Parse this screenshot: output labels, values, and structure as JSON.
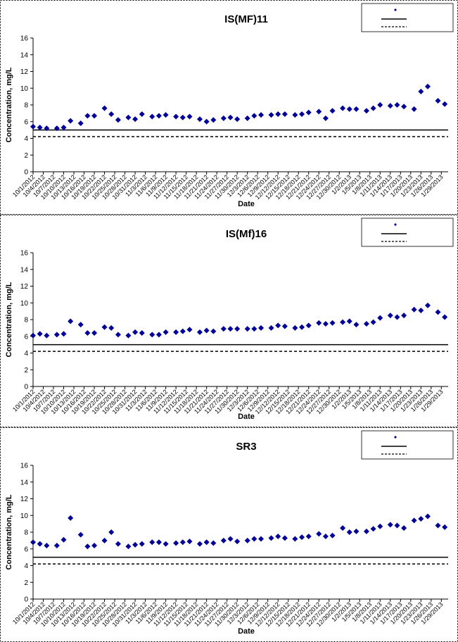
{
  "chart_data": [
    {
      "type": "scatter",
      "title": "IS(MF)11",
      "xlabel": "Date",
      "ylabel": "Concentration, mg/L",
      "ylim": [
        0,
        16
      ],
      "yticks": [
        0,
        2,
        4,
        6,
        8,
        10,
        12,
        14,
        16
      ],
      "xlim": [
        "2012-10-01",
        "2013-01-31"
      ],
      "xticks": [
        "10/1/2012",
        "10/4/2012",
        "10/7/2012",
        "10/10/2012",
        "10/13/2012",
        "10/16/2012",
        "10/19/2012",
        "10/22/2012",
        "10/25/2012",
        "10/28/2012",
        "10/31/2012",
        "11/3/2012",
        "11/6/2012",
        "11/9/2012",
        "11/12/2012",
        "11/15/2012",
        "11/18/2012",
        "11/21/2012",
        "11/24/2012",
        "11/27/2012",
        "11/30/2012",
        "12/3/2012",
        "12/6/2012",
        "12/9/2012",
        "12/12/2012",
        "12/15/2012",
        "12/18/2012",
        "12/21/2012",
        "12/24/2012",
        "12/27/2012",
        "12/30/2012",
        "1/2/2013",
        "1/5/2013",
        "1/8/2013",
        "1/11/2013",
        "1/14/2013",
        "1/17/2013",
        "1/20/2013",
        "1/23/2013",
        "1/26/2013",
        "1/29/2013"
      ],
      "grid": false,
      "legend_placement": "top-right",
      "reference_lines": [
        {
          "value": 5.0,
          "style": "solid"
        },
        {
          "value": 4.2,
          "style": "dashed"
        }
      ],
      "series": [
        {
          "marker": "diamond",
          "color": "#000099",
          "x": [
            "2012-10-01",
            "2012-10-03",
            "2012-10-05",
            "2012-10-08",
            "2012-10-10",
            "2012-10-12",
            "2012-10-15",
            "2012-10-17",
            "2012-10-19",
            "2012-10-22",
            "2012-10-24",
            "2012-10-26",
            "2012-10-29",
            "2012-10-31",
            "2012-11-02",
            "2012-11-05",
            "2012-11-07",
            "2012-11-09",
            "2012-11-12",
            "2012-11-14",
            "2012-11-16",
            "2012-11-19",
            "2012-11-21",
            "2012-11-23",
            "2012-11-26",
            "2012-11-28",
            "2012-11-30",
            "2012-12-03",
            "2012-12-05",
            "2012-12-07",
            "2012-12-10",
            "2012-12-12",
            "2012-12-14",
            "2012-12-17",
            "2012-12-19",
            "2012-12-21",
            "2012-12-24",
            "2012-12-26",
            "2012-12-28",
            "2012-12-31",
            "2013-01-02",
            "2013-01-04",
            "2013-01-07",
            "2013-01-09",
            "2013-01-11",
            "2013-01-14",
            "2013-01-16",
            "2013-01-18",
            "2013-01-21",
            "2013-01-23",
            "2013-01-25",
            "2013-01-28",
            "2013-01-30"
          ],
          "y": [
            5.4,
            5.3,
            5.2,
            5.2,
            5.3,
            6.1,
            5.8,
            6.7,
            6.7,
            7.6,
            6.9,
            6.2,
            6.5,
            6.3,
            6.9,
            6.6,
            6.7,
            6.8,
            6.6,
            6.5,
            6.6,
            6.3,
            6.0,
            6.2,
            6.4,
            6.5,
            6.3,
            6.4,
            6.7,
            6.8,
            6.8,
            6.9,
            6.9,
            6.8,
            6.9,
            7.1,
            7.2,
            6.4,
            7.3,
            7.6,
            7.5,
            7.5,
            7.3,
            7.6,
            8.0,
            7.9,
            8.0,
            7.8,
            7.5,
            9.6,
            10.2,
            8.5,
            8.1
          ]
        }
      ]
    },
    {
      "type": "scatter",
      "title": "IS(Mf)16",
      "xlabel": "Date",
      "ylabel": "Concentration, mg/L",
      "ylim": [
        0,
        16
      ],
      "yticks": [
        0,
        2,
        4,
        6,
        8,
        10,
        12,
        14,
        16
      ],
      "xlim": [
        "2012-10-01",
        "2013-01-31"
      ],
      "xticks": [
        "10/1/2012",
        "10/4/2012",
        "10/7/2012",
        "10/10/2012",
        "10/13/2012",
        "10/16/2012",
        "10/19/2012",
        "10/22/2012",
        "10/25/2012",
        "10/28/2012",
        "10/31/2012",
        "11/3/2012",
        "11/6/2012",
        "11/9/2012",
        "11/12/2012",
        "11/15/2012",
        "11/18/2012",
        "11/21/2012",
        "11/24/2012",
        "11/27/2012",
        "11/30/2012",
        "12/3/2012",
        "12/6/2012",
        "12/9/2012",
        "12/12/2012",
        "12/15/2012",
        "12/18/2012",
        "12/21/2012",
        "12/24/2012",
        "12/27/2012",
        "12/30/2012",
        "1/2/2013",
        "1/5/2013",
        "1/8/2013",
        "1/11/2013",
        "1/14/2013",
        "1/17/2013",
        "1/20/2013",
        "1/23/2013",
        "1/26/2013",
        "1/29/2013"
      ],
      "grid": false,
      "legend_placement": "top-right",
      "reference_lines": [
        {
          "value": 5.0,
          "style": "solid"
        },
        {
          "value": 4.2,
          "style": "dashed"
        }
      ],
      "series": [
        {
          "marker": "diamond",
          "color": "#000099",
          "x": [
            "2012-10-01",
            "2012-10-03",
            "2012-10-05",
            "2012-10-08",
            "2012-10-10",
            "2012-10-12",
            "2012-10-15",
            "2012-10-17",
            "2012-10-19",
            "2012-10-22",
            "2012-10-24",
            "2012-10-26",
            "2012-10-29",
            "2012-10-31",
            "2012-11-02",
            "2012-11-05",
            "2012-11-07",
            "2012-11-09",
            "2012-11-12",
            "2012-11-14",
            "2012-11-16",
            "2012-11-19",
            "2012-11-21",
            "2012-11-23",
            "2012-11-26",
            "2012-11-28",
            "2012-11-30",
            "2012-12-03",
            "2012-12-05",
            "2012-12-07",
            "2012-12-10",
            "2012-12-12",
            "2012-12-14",
            "2012-12-17",
            "2012-12-19",
            "2012-12-21",
            "2012-12-24",
            "2012-12-26",
            "2012-12-28",
            "2012-12-31",
            "2013-01-02",
            "2013-01-04",
            "2013-01-07",
            "2013-01-09",
            "2013-01-11",
            "2013-01-14",
            "2013-01-16",
            "2013-01-18",
            "2013-01-21",
            "2013-01-23",
            "2013-01-25",
            "2013-01-28",
            "2013-01-30"
          ],
          "y": [
            6.1,
            6.3,
            6.1,
            6.2,
            6.3,
            7.8,
            7.4,
            6.4,
            6.4,
            7.1,
            7.0,
            6.2,
            6.1,
            6.5,
            6.4,
            6.2,
            6.2,
            6.5,
            6.5,
            6.6,
            6.8,
            6.5,
            6.7,
            6.6,
            6.9,
            6.9,
            6.9,
            6.9,
            6.9,
            7.0,
            7.0,
            7.3,
            7.2,
            7.0,
            7.1,
            7.3,
            7.6,
            7.5,
            7.6,
            7.7,
            7.8,
            7.4,
            7.5,
            7.7,
            8.2,
            8.5,
            8.3,
            8.5,
            9.2,
            9.1,
            9.7,
            8.9,
            8.3
          ]
        }
      ]
    },
    {
      "type": "scatter",
      "title": "SR3",
      "xlabel": "Date",
      "ylabel": "Concentration, mg/L",
      "ylim": [
        0,
        16
      ],
      "yticks": [
        0,
        2,
        4,
        6,
        8,
        10,
        12,
        14,
        16
      ],
      "xlim": [
        "2012-10-01",
        "2013-01-31"
      ],
      "xticks": [
        "10/1/2012",
        "10/4/2012",
        "10/7/2012",
        "10/10/2012",
        "10/13/2012",
        "10/16/2012",
        "10/19/2012",
        "10/22/2012",
        "10/25/2012",
        "10/28/2012",
        "10/31/2012",
        "11/3/2012",
        "11/6/2012",
        "11/9/2012",
        "11/12/2012",
        "11/15/2012",
        "11/18/2012",
        "11/21/2012",
        "11/24/2012",
        "11/27/2012",
        "11/30/2012",
        "12/3/2012",
        "12/6/2012",
        "12/9/2012",
        "12/12/2012",
        "12/15/2012",
        "12/18/2012",
        "12/21/2012",
        "12/24/2012",
        "12/27/2012",
        "12/30/2012",
        "1/2/2013",
        "1/5/2013",
        "1/8/2013",
        "1/11/2013",
        "1/14/2013",
        "1/17/2013",
        "1/20/2013",
        "1/23/2013",
        "1/26/2013",
        "1/29/2013"
      ],
      "grid": false,
      "legend_placement": "top-right",
      "reference_lines": [
        {
          "value": 5.0,
          "style": "solid"
        },
        {
          "value": 4.2,
          "style": "dashed"
        }
      ],
      "series": [
        {
          "marker": "diamond",
          "color": "#000099",
          "x": [
            "2012-10-01",
            "2012-10-03",
            "2012-10-05",
            "2012-10-08",
            "2012-10-10",
            "2012-10-12",
            "2012-10-15",
            "2012-10-17",
            "2012-10-19",
            "2012-10-22",
            "2012-10-24",
            "2012-10-26",
            "2012-10-29",
            "2012-10-31",
            "2012-11-02",
            "2012-11-05",
            "2012-11-07",
            "2012-11-09",
            "2012-11-12",
            "2012-11-14",
            "2012-11-16",
            "2012-11-19",
            "2012-11-21",
            "2012-11-23",
            "2012-11-26",
            "2012-11-28",
            "2012-11-30",
            "2012-12-03",
            "2012-12-05",
            "2012-12-07",
            "2012-12-10",
            "2012-12-12",
            "2012-12-14",
            "2012-12-17",
            "2012-12-19",
            "2012-12-21",
            "2012-12-24",
            "2012-12-26",
            "2012-12-28",
            "2012-12-31",
            "2013-01-02",
            "2013-01-04",
            "2013-01-07",
            "2013-01-09",
            "2013-01-11",
            "2013-01-14",
            "2013-01-16",
            "2013-01-18",
            "2013-01-21",
            "2013-01-23",
            "2013-01-25",
            "2013-01-28",
            "2013-01-30"
          ],
          "y": [
            6.8,
            6.6,
            6.4,
            6.4,
            7.1,
            9.7,
            7.7,
            6.3,
            6.4,
            7.0,
            8.0,
            6.6,
            6.3,
            6.5,
            6.6,
            6.8,
            6.8,
            6.6,
            6.7,
            6.8,
            6.9,
            6.6,
            6.8,
            6.7,
            7.0,
            7.2,
            6.9,
            7.0,
            7.2,
            7.2,
            7.3,
            7.5,
            7.3,
            7.2,
            7.4,
            7.5,
            7.8,
            7.5,
            7.6,
            8.5,
            8.0,
            8.1,
            8.1,
            8.4,
            8.7,
            8.9,
            8.8,
            8.5,
            9.4,
            9.6,
            9.9,
            8.8,
            8.6
          ]
        }
      ]
    }
  ]
}
